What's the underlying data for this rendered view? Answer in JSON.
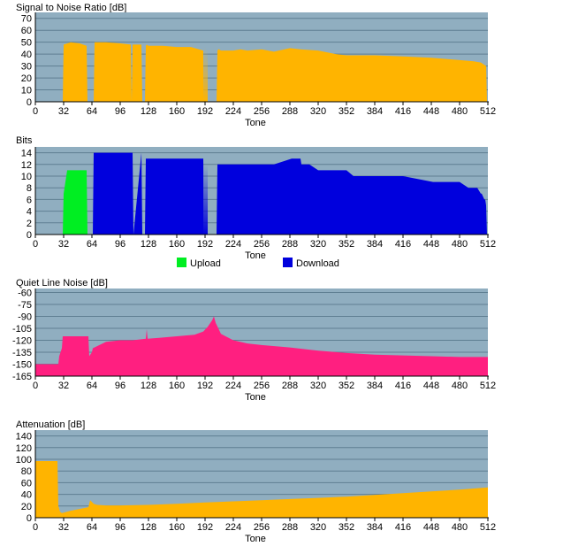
{
  "colors": {
    "plot_bg": "#90aec0",
    "grid": "#5f7f92",
    "snr": "#ffb400",
    "upload": "#00ee22",
    "download": "#0000dd",
    "qln": "#ff1f80",
    "attenuation": "#ffb400"
  },
  "chart_data": [
    {
      "type": "area",
      "title": "Signal to Noise Ratio [dB]",
      "xlabel": "Tone",
      "ylabel": "",
      "xlim": [
        0,
        512
      ],
      "ylim": [
        0,
        75
      ],
      "xticks": [
        "0",
        "32",
        "64",
        "96",
        "128",
        "160",
        "192",
        "224",
        "256",
        "288",
        "320",
        "352",
        "384",
        "416",
        "448",
        "480",
        "512"
      ],
      "yticks": [
        "0",
        "10",
        "20",
        "30",
        "40",
        "50",
        "60",
        "70"
      ],
      "grid": true,
      "series": [
        {
          "color_key": "snr",
          "x": [
            0,
            30,
            31,
            32,
            40,
            50,
            58,
            59,
            60,
            61,
            64,
            66,
            67,
            70,
            80,
            96,
            108,
            109,
            110,
            120,
            121,
            122,
            124,
            125,
            126,
            128,
            144,
            160,
            176,
            190,
            191,
            192,
            193,
            194,
            195,
            196,
            205,
            206,
            207,
            208,
            210,
            224,
            232,
            240,
            256,
            270,
            288,
            300,
            320,
            340,
            352,
            384,
            416,
            448,
            480,
            496,
            504,
            510,
            511,
            512
          ],
          "y": [
            0,
            0,
            0,
            48,
            50,
            49,
            47,
            0,
            0,
            0,
            0,
            0,
            50,
            50,
            50,
            49,
            48,
            0,
            48,
            48,
            0,
            0,
            0,
            47,
            48,
            47,
            47,
            46,
            46,
            43,
            0,
            46,
            0,
            44,
            0,
            0,
            0,
            43,
            44,
            44,
            43,
            43,
            44,
            43,
            44,
            42,
            45,
            44,
            43,
            40,
            39,
            39,
            38,
            37,
            35,
            34,
            33,
            30,
            0,
            0
          ]
        }
      ]
    },
    {
      "type": "area",
      "title": "Bits",
      "xlabel": "Tone",
      "ylabel": "",
      "xlim": [
        0,
        512
      ],
      "ylim": [
        0,
        15
      ],
      "xticks": [
        "0",
        "32",
        "64",
        "96",
        "128",
        "160",
        "192",
        "224",
        "256",
        "288",
        "320",
        "352",
        "384",
        "416",
        "448",
        "480",
        "512"
      ],
      "yticks": [
        "0",
        "2",
        "4",
        "6",
        "8",
        "10",
        "12",
        "14"
      ],
      "grid": true,
      "legend": {
        "position": "bottom",
        "entries": [
          {
            "label": "Upload",
            "color_key": "upload"
          },
          {
            "label": "Download",
            "color_key": "download"
          }
        ]
      },
      "series": [
        {
          "name": "Upload",
          "color_key": "upload",
          "x": [
            0,
            30,
            31,
            32,
            33,
            34,
            35,
            36,
            38,
            40,
            58,
            59,
            60
          ],
          "y": [
            0,
            0,
            0,
            7,
            8,
            9,
            10,
            11,
            11,
            11,
            11,
            0,
            0
          ]
        },
        {
          "name": "Download",
          "color_key": "download",
          "x": [
            63,
            64,
            65,
            66,
            80,
            96,
            110,
            111,
            120,
            121,
            124,
            125,
            126,
            128,
            190,
            191,
            192,
            193,
            194,
            195,
            196,
            205,
            206,
            207,
            208,
            240,
            256,
            270,
            290,
            300,
            301,
            310,
            320,
            330,
            340,
            352,
            360,
            380,
            400,
            416,
            450,
            460,
            470,
            480,
            490,
            495,
            500,
            504,
            505,
            508,
            509,
            510,
            511,
            512
          ],
          "y": [
            0,
            0,
            0,
            14,
            14,
            14,
            14,
            0,
            14,
            0,
            0,
            13,
            13,
            13,
            13,
            0,
            12,
            0,
            12,
            0,
            0,
            0,
            12,
            12,
            12,
            12,
            12,
            12,
            13,
            13,
            12,
            12,
            11,
            11,
            11,
            11,
            10,
            10,
            10,
            10,
            9,
            9,
            9,
            9,
            8,
            8,
            8,
            7,
            7,
            6,
            6,
            5,
            0,
            0
          ]
        }
      ]
    },
    {
      "type": "area",
      "title": "Quiet Line Noise [dB]",
      "xlabel": "Tone",
      "ylabel": "",
      "xlim": [
        0,
        512
      ],
      "ylim": [
        -165,
        -55
      ],
      "xticks": [
        "0",
        "32",
        "64",
        "96",
        "128",
        "160",
        "192",
        "224",
        "256",
        "288",
        "320",
        "352",
        "384",
        "416",
        "448",
        "480",
        "512"
      ],
      "yticks": [
        "-60",
        "-75",
        "-90",
        "-105",
        "-120",
        "-135",
        "-150",
        "-165"
      ],
      "grid": true,
      "series": [
        {
          "color_key": "qln",
          "x": [
            0,
            26,
            27,
            30,
            31,
            60,
            61,
            64,
            65,
            80,
            96,
            110,
            125,
            126,
            127,
            140,
            160,
            180,
            190,
            195,
            200,
            202,
            204,
            210,
            224,
            240,
            256,
            288,
            320,
            352,
            384,
            416,
            448,
            480,
            512
          ],
          "y": [
            -150,
            -150,
            -140,
            -130,
            -115,
            -115,
            -140,
            -135,
            -130,
            -122,
            -120,
            -120,
            -118,
            -106,
            -118,
            -117,
            -115,
            -113,
            -109,
            -103,
            -95,
            -90,
            -98,
            -112,
            -120,
            -124,
            -126,
            -129,
            -133,
            -136,
            -138,
            -139,
            -140,
            -141,
            -141
          ]
        }
      ]
    },
    {
      "type": "area",
      "title": "Attenuation [dB]",
      "xlabel": "Tone",
      "ylabel": "",
      "xlim": [
        0,
        512
      ],
      "ylim": [
        0,
        150
      ],
      "xticks": [
        "0",
        "32",
        "64",
        "96",
        "128",
        "160",
        "192",
        "224",
        "256",
        "288",
        "320",
        "352",
        "384",
        "416",
        "448",
        "480",
        "512"
      ],
      "yticks": [
        "0",
        "20",
        "40",
        "60",
        "80",
        "100",
        "120",
        "140"
      ],
      "grid": true,
      "series": [
        {
          "color_key": "attenuation",
          "x": [
            0,
            25,
            26,
            28,
            30,
            40,
            50,
            60,
            62,
            64,
            66,
            70,
            80,
            96,
            128,
            160,
            192,
            224,
            256,
            288,
            320,
            352,
            384,
            416,
            448,
            480,
            512
          ],
          "y": [
            97,
            97,
            20,
            10,
            8,
            12,
            15,
            18,
            30,
            27,
            24,
            22,
            21,
            21,
            22,
            24,
            26,
            28,
            30,
            32,
            34,
            36,
            39,
            42,
            45,
            48,
            52
          ]
        }
      ]
    }
  ]
}
